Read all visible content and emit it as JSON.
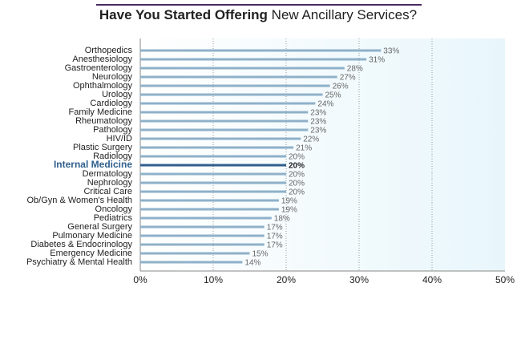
{
  "chart_data": {
    "type": "hbar",
    "title_parts": [
      "Have You Started Offering",
      "New Ancillary Services?"
    ],
    "categories": [
      "Orthopedics",
      "Anesthesiology",
      "Gastroenterology",
      "Neurology",
      "Ophthalmology",
      "Urology",
      "Cardiology",
      "Family Medicine",
      "Rheumatology",
      "Pathology",
      "HIV/ID",
      "Plastic Surgery",
      "Radiology",
      "Internal Medicine",
      "Dermatology",
      "Nephrology",
      "Critical Care",
      "Ob/Gyn & Women's Health",
      "Oncology",
      "Pediatrics",
      "General Surgery",
      "Pulmonary Medicine",
      "Diabetes & Endocrinology",
      "Emergency Medicine",
      "Psychiatry & Mental Health"
    ],
    "values": [
      33,
      31,
      28,
      27,
      26,
      25,
      24,
      23,
      23,
      23,
      22,
      21,
      20,
      20,
      20,
      20,
      20,
      19,
      19,
      18,
      17,
      17,
      17,
      15,
      14
    ],
    "value_labels": [
      "33%",
      "31%",
      "28%",
      "27%",
      "26%",
      "25%",
      "24%",
      "23%",
      "23%",
      "23%",
      "22%",
      "21%",
      "20%",
      "20%",
      "20%",
      "20%",
      "20%",
      "19%",
      "19%",
      "18%",
      "17%",
      "17%",
      "17%",
      "15%",
      "14%"
    ],
    "color": "#8fb1c9",
    "highlight": "Internal Medicine",
    "highlight_color": "#2f5f8c",
    "xlim": [
      0,
      50
    ],
    "xticks": [
      {
        "value": 0,
        "label": "0%"
      },
      {
        "value": 10,
        "label": "10%"
      },
      {
        "value": 20,
        "label": "20%"
      },
      {
        "value": 30,
        "label": "30%"
      },
      {
        "value": 40,
        "label": "40%"
      },
      {
        "value": 50,
        "label": "50%"
      }
    ],
    "grid": true
  }
}
